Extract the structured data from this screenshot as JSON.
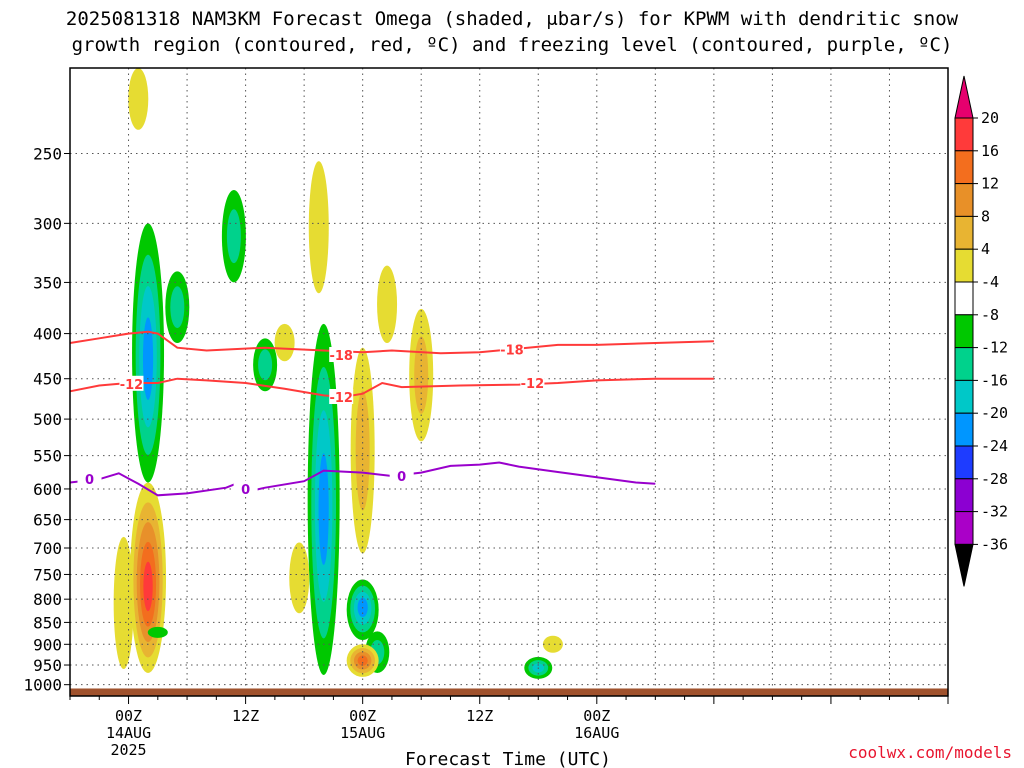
{
  "title_line1": "2025081318 NAM3KM Forecast Omega (shaded, μbar/s) for KPWM with dendritic snow",
  "title_line2": "growth region (contoured, red, ºC) and freezing level (contoured, purple, ºC)",
  "credit": "coolwx.com/models",
  "chart_data": {
    "type": "heatmap",
    "title": "2025081318 NAM3KM Forecast Omega (shaded, μbar/s) for KPWM with dendritic snow growth region (contoured, red, ºC) and freezing level (contoured, purple, ºC)",
    "xlabel": "Forecast Time (UTC)",
    "ylabel": "",
    "xlim": [
      -6,
      84
    ],
    "ylim": [
      1030,
      200
    ],
    "y_scale": "log (pressure)",
    "grid": true,
    "y_ticks": [
      250,
      300,
      350,
      400,
      450,
      500,
      550,
      600,
      650,
      700,
      750,
      800,
      850,
      900,
      950,
      1000
    ],
    "x_ticks": [
      {
        "hour": 0,
        "lines": [
          "00Z",
          "14AUG",
          "2025"
        ]
      },
      {
        "hour": 12,
        "lines": [
          "12Z"
        ]
      },
      {
        "hour": 24,
        "lines": [
          "00Z",
          "15AUG"
        ]
      },
      {
        "hour": 36,
        "lines": [
          "12Z"
        ]
      },
      {
        "hour": 48,
        "lines": [
          "00Z",
          "16AUG"
        ]
      }
    ],
    "colorbar": {
      "labels": [
        20,
        16,
        12,
        8,
        4,
        -4,
        -8,
        -12,
        -16,
        -20,
        -24,
        -28,
        -32,
        -36
      ],
      "colors": [
        "#ff3a3a",
        "#f36e1e",
        "#e89028",
        "#e8b432",
        "#e6dc32",
        "#ffffff",
        "#00c800",
        "#00d28c",
        "#00c8c8",
        "#0096ff",
        "#1e3cff",
        "#8c00d2",
        "#aa00c8",
        "#a0a0a0",
        "#000000"
      ],
      "top_arrow_color": "#e6006e",
      "bottom_arrow_color": "#000000"
    },
    "contours": [
      {
        "name": "-18",
        "color": "#ff3a3a",
        "kind": "dgz",
        "points": [
          [
            -6,
            410
          ],
          [
            -3,
            405
          ],
          [
            0,
            400
          ],
          [
            2,
            398
          ],
          [
            3,
            400
          ],
          [
            5,
            415
          ],
          [
            8,
            418
          ],
          [
            14,
            415
          ],
          [
            20,
            418
          ],
          [
            24,
            420
          ],
          [
            27,
            418
          ],
          [
            32,
            421
          ],
          [
            36,
            420
          ],
          [
            40,
            416
          ],
          [
            44,
            412
          ],
          [
            48,
            412
          ],
          [
            54,
            410
          ],
          [
            60,
            408
          ]
        ]
      },
      {
        "name": "-12",
        "color": "#ff3a3a",
        "kind": "dgz",
        "points": [
          [
            -6,
            465
          ],
          [
            -3,
            458
          ],
          [
            0,
            455
          ],
          [
            3,
            455
          ],
          [
            5,
            450
          ],
          [
            8,
            452
          ],
          [
            12,
            455
          ],
          [
            16,
            462
          ],
          [
            20,
            470
          ],
          [
            22,
            472
          ],
          [
            24,
            468
          ],
          [
            26,
            455
          ],
          [
            28,
            460
          ],
          [
            34,
            458
          ],
          [
            40,
            457
          ],
          [
            44,
            455
          ],
          [
            48,
            452
          ],
          [
            54,
            450
          ],
          [
            60,
            450
          ]
        ]
      },
      {
        "name": "0",
        "color": "#9900cc",
        "kind": "freezing_level",
        "points": [
          [
            -6,
            590
          ],
          [
            -3,
            585
          ],
          [
            -1,
            576
          ],
          [
            1,
            592
          ],
          [
            3,
            610
          ],
          [
            6,
            607
          ],
          [
            10,
            598
          ],
          [
            11,
            592
          ],
          [
            12,
            605
          ],
          [
            14,
            598
          ],
          [
            18,
            588
          ],
          [
            20,
            572
          ],
          [
            24,
            575
          ],
          [
            27,
            580
          ],
          [
            30,
            575
          ],
          [
            33,
            565
          ],
          [
            36,
            563
          ],
          [
            38,
            560
          ],
          [
            40,
            566
          ],
          [
            44,
            574
          ],
          [
            48,
            582
          ],
          [
            52,
            590
          ],
          [
            54,
            592
          ]
        ]
      }
    ],
    "contour_labels": [
      {
        "text": "-18",
        "hour": 21.8,
        "p": 423
      },
      {
        "text": "-18",
        "hour": 39.3,
        "p": 417
      },
      {
        "text": "-12",
        "hour": 0.3,
        "p": 456
      },
      {
        "text": "-12",
        "hour": 21.8,
        "p": 472
      },
      {
        "text": "-12",
        "hour": 41.4,
        "p": 455
      },
      {
        "text": "0",
        "hour": -4.0,
        "p": 585
      },
      {
        "text": "0",
        "hour": 12.0,
        "p": 600
      },
      {
        "text": "0",
        "hour": 28.0,
        "p": 580
      }
    ],
    "omega_features": [
      {
        "sign": "negative",
        "peak": -16,
        "hour": 2.0,
        "p_top": 300,
        "p_bottom": 590,
        "core_p": 430
      },
      {
        "sign": "negative",
        "peak": -8,
        "hour": 5.0,
        "p_top": 340,
        "p_bottom": 410
      },
      {
        "sign": "negative",
        "peak": -8,
        "hour": 10.8,
        "p_top": 275,
        "p_bottom": 350
      },
      {
        "sign": "negative",
        "peak": -8,
        "hour": 14.0,
        "p_top": 405,
        "p_bottom": 465
      },
      {
        "sign": "positive",
        "peak": 4,
        "hour": 19.5,
        "p_top": 255,
        "p_bottom": 360
      },
      {
        "sign": "positive",
        "peak": 4,
        "hour": 16.0,
        "p_top": 390,
        "p_bottom": 430
      },
      {
        "sign": "negative",
        "peak": -16,
        "hour": 20.0,
        "p_top": 390,
        "p_bottom": 975,
        "core_p": 640
      },
      {
        "sign": "positive",
        "peak": 8,
        "hour": 24.0,
        "p_top": 415,
        "p_bottom": 710
      },
      {
        "sign": "positive",
        "peak": 4,
        "hour": 26.5,
        "p_top": 335,
        "p_bottom": 410
      },
      {
        "sign": "positive",
        "peak": 8,
        "hour": 30.0,
        "p_top": 375,
        "p_bottom": 530
      },
      {
        "sign": "positive",
        "peak": 4,
        "hour": 17.5,
        "p_top": 690,
        "p_bottom": 830
      },
      {
        "sign": "negative",
        "peak": -16,
        "hour": 24.0,
        "p_top": 760,
        "p_bottom": 890,
        "core_p": 815
      },
      {
        "sign": "negative",
        "peak": -8,
        "hour": 25.5,
        "p_top": 870,
        "p_bottom": 970
      },
      {
        "sign": "positive",
        "peak": 16,
        "hour": 24.0,
        "p_top": 900,
        "p_bottom": 980
      },
      {
        "sign": "positive",
        "peak": 20,
        "hour": 2.0,
        "p_top": 590,
        "p_bottom": 970,
        "core_p": 780
      },
      {
        "sign": "positive",
        "peak": 4,
        "hour": -0.5,
        "p_top": 680,
        "p_bottom": 960
      },
      {
        "sign": "negative",
        "peak": -4,
        "hour": 3.0,
        "p_top": 860,
        "p_bottom": 885
      },
      {
        "sign": "positive",
        "peak": 4,
        "hour": 1.0,
        "p_top": 200,
        "p_bottom": 235
      },
      {
        "sign": "negative",
        "peak": -12,
        "hour": 42.0,
        "p_top": 930,
        "p_bottom": 985
      },
      {
        "sign": "positive",
        "peak": 4,
        "hour": 43.5,
        "p_top": 880,
        "p_bottom": 920
      }
    ],
    "terrain": {
      "color": "#a0522d",
      "surface_p": 1010
    }
  }
}
